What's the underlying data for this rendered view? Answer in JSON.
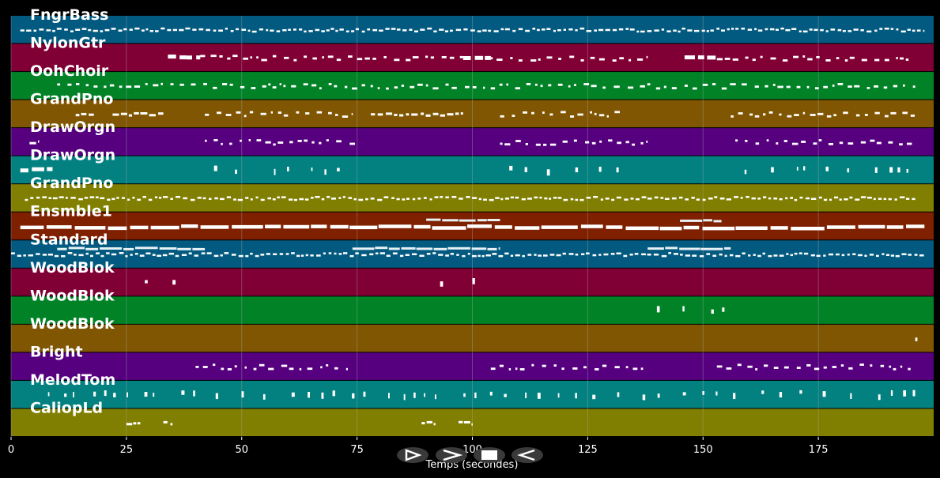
{
  "chart_data": {
    "type": "piano-roll",
    "xlabel": "Temps (secondes)",
    "xlim": [
      0,
      200
    ],
    "xticks": [
      0,
      25,
      50,
      75,
      100,
      125,
      150,
      175
    ],
    "grid": true,
    "tracks": [
      {
        "name": "FngrBass",
        "color": "#035a80",
        "segments": [
          [
            2,
            198,
            "dense"
          ]
        ]
      },
      {
        "name": "NylonGtr",
        "color": "#800035",
        "segments": [
          [
            34,
            38,
            "block"
          ],
          [
            38,
            41,
            "block"
          ],
          [
            41,
            48,
            "sparse"
          ],
          [
            48,
            75,
            "sparse"
          ],
          [
            75,
            98,
            "sparse"
          ],
          [
            98,
            104,
            "block"
          ],
          [
            104,
            110,
            "sparse"
          ],
          [
            110,
            138,
            "sparse"
          ],
          [
            146,
            153,
            "block"
          ],
          [
            153,
            195,
            "sparse"
          ]
        ]
      },
      {
        "name": "OohChoir",
        "color": "#018226",
        "segments": [
          [
            10,
            196,
            "sparse"
          ]
        ]
      },
      {
        "name": "GrandPno",
        "color": "#805602",
        "segments": [
          [
            14,
            18,
            "short"
          ],
          [
            22,
            33,
            "short"
          ],
          [
            42,
            74,
            "sparse"
          ],
          [
            78,
            98,
            "short"
          ],
          [
            106,
            133,
            "sparse"
          ],
          [
            156,
            196,
            "sparse"
          ]
        ]
      },
      {
        "name": "DrawOrgn",
        "color": "#560080",
        "segments": [
          [
            4,
            6,
            "short"
          ],
          [
            42,
            75,
            "sparse"
          ],
          [
            106,
            138,
            "sparse"
          ],
          [
            157,
            196,
            "sparse"
          ]
        ]
      },
      {
        "name": "DrawOrgn",
        "color": "#038080",
        "segments": [
          [
            2,
            9,
            "block"
          ],
          [
            44,
            49,
            "spot"
          ],
          [
            57,
            73,
            "spot"
          ],
          [
            108,
            134,
            "spot"
          ],
          [
            159,
            195,
            "spot"
          ]
        ]
      },
      {
        "name": "GrandPno",
        "color": "#807f01",
        "segments": [
          [
            3,
            196,
            "dense"
          ]
        ]
      },
      {
        "name": "Ensmble1",
        "color": "#7f2000",
        "segments": [
          [
            2,
            198,
            "thick"
          ],
          [
            90,
            106,
            "upper"
          ],
          [
            145,
            154,
            "upper"
          ]
        ]
      },
      {
        "name": "Standard",
        "color": "#035a80",
        "segments": [
          [
            0,
            198,
            "dense"
          ],
          [
            10,
            42,
            "upper"
          ],
          [
            74,
            106,
            "upper"
          ],
          [
            138,
            156,
            "upper"
          ]
        ]
      },
      {
        "name": "WoodBlok",
        "color": "#800035",
        "segments": [
          [
            29,
            30,
            "spot"
          ],
          [
            35,
            37,
            "spot"
          ],
          [
            93,
            95,
            "spot"
          ],
          [
            100,
            102,
            "spot"
          ]
        ]
      },
      {
        "name": "WoodBlok",
        "color": "#018226",
        "segments": [
          [
            140,
            156,
            "spot"
          ]
        ]
      },
      {
        "name": "WoodBlok",
        "color": "#805602",
        "segments": [
          [
            196,
            197,
            "spot"
          ]
        ]
      },
      {
        "name": "Bright",
        "color": "#560080",
        "segments": [
          [
            40,
            73,
            "sparse"
          ],
          [
            104,
            137,
            "sparse"
          ],
          [
            153,
            195,
            "sparse"
          ]
        ]
      },
      {
        "name": "MelodTom",
        "color": "#038080",
        "segments": [
          [
            8,
            196,
            "spot"
          ]
        ]
      },
      {
        "name": "CaliopLd",
        "color": "#807f01",
        "segments": [
          [
            25,
            28,
            "short"
          ],
          [
            33,
            35,
            "short"
          ],
          [
            89,
            92,
            "short"
          ],
          [
            97,
            100,
            "short"
          ]
        ]
      }
    ]
  },
  "controls": {
    "play_icon": "play-outline-icon",
    "forward_icon": "forward-icon",
    "stop_icon": "stop-icon",
    "rewind_icon": "rewind-icon"
  }
}
